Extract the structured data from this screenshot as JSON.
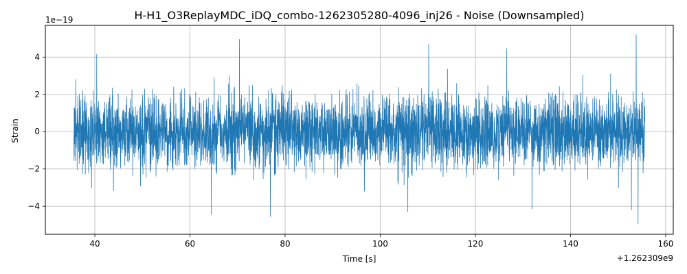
{
  "chart_data": {
    "type": "line",
    "title": "H-H1_O3ReplayMDC_iDQ_combo-1262305280-4096_inj26 - Noise (Downsampled)",
    "xlabel": "Time [s]",
    "ylabel": "Strain",
    "x_offset_label": "+1.262309e9",
    "y_scale_label": "1e−19",
    "xlim": [
      29.6,
      161.6
    ],
    "ylim": [
      -5.5,
      5.7
    ],
    "x_data_range": [
      35.6,
      155.6
    ],
    "x_ticks": [
      40,
      60,
      80,
      100,
      120,
      140,
      160
    ],
    "x_tick_labels": [
      "40",
      "60",
      "80",
      "100",
      "120",
      "140",
      "160"
    ],
    "y_ticks": [
      -4,
      -2,
      0,
      2,
      4
    ],
    "y_tick_labels": [
      "−4",
      "−2",
      "0",
      "2",
      "4"
    ],
    "grid": true,
    "line_color": "#1f77b4",
    "noise_rms": 0.95,
    "annotated_extremes": [
      {
        "x": 40.4,
        "y": 4.15
      },
      {
        "x": 70.4,
        "y": 4.95
      },
      {
        "x": 64.5,
        "y": -4.45
      },
      {
        "x": 76.9,
        "y": -4.55
      },
      {
        "x": 110.2,
        "y": 4.7
      },
      {
        "x": 105.8,
        "y": -4.3
      },
      {
        "x": 126.6,
        "y": 4.45
      },
      {
        "x": 131.9,
        "y": -4.15
      },
      {
        "x": 153.8,
        "y": 5.2
      },
      {
        "x": 154.2,
        "y": -4.95
      },
      {
        "x": 152.8,
        "y": -4.2
      }
    ]
  }
}
